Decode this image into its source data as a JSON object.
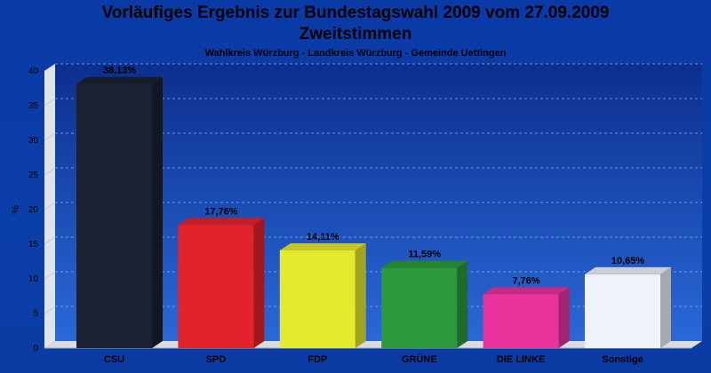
{
  "chart_data": {
    "type": "bar",
    "title": "Vorläufiges Ergebnis zur Bundestagswahl 2009 vom 27.09.2009",
    "subtitle": "Zweitstimmen",
    "subsubtitle": "Wahlkreis Würzburg - Landkreis Würzburg - Gemeinde Uettingen",
    "ylabel": "%",
    "ylim": [
      0,
      40
    ],
    "yticks": [
      "0",
      "5",
      "10",
      "15",
      "20",
      "25",
      "30",
      "35",
      "40"
    ],
    "grid": true,
    "categories": [
      "CSU",
      "SPD",
      "FDP",
      "GRÜNE",
      "DIE LINKE",
      "Sonstige"
    ],
    "values": [
      38.13,
      17.76,
      14.11,
      11.59,
      7.76,
      10.65
    ],
    "labels": [
      "38,13%",
      "17,76%",
      "14,11%",
      "11,59%",
      "7,76%",
      "10,65%"
    ],
    "colors": [
      "#1a2133",
      "#e3232b",
      "#e6ea2e",
      "#2c9a3a",
      "#e8339c",
      "#eef2fb"
    ]
  }
}
